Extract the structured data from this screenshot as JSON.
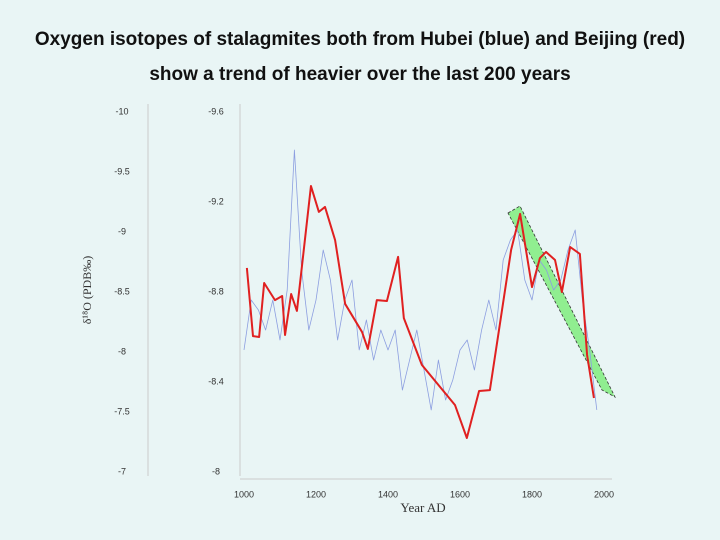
{
  "chart_data": {
    "type": "line",
    "title": "Oxygen isotopes of stalagmites both from Hubei (blue) and Beijing (red) show a trend of heavier over the last 200 years",
    "xlabel": "Year AD",
    "ylabel": "δ¹⁸O (PDB‰)",
    "xlim": [
      1000,
      2000
    ],
    "xticks": [
      1000,
      1200,
      1400,
      1600,
      1800,
      2000
    ],
    "ylim": [
      -10,
      -7
    ],
    "yticks": [
      -10,
      -9.5,
      -9,
      -8.5,
      -8,
      -7.5,
      -7
    ],
    "y2lim": [
      -9.6,
      -8
    ],
    "y2ticks": [
      -9.6,
      -9.2,
      -8.8,
      -8.4,
      -8
    ],
    "y_inverted": true,
    "series": [
      {
        "color": "#8c9ee0",
        "axis": "y",
        "x": [
          1000,
          1020,
          1040,
          1060,
          1080,
          1100,
          1120,
          1140,
          1160,
          1180,
          1200,
          1220,
          1240,
          1260,
          1280,
          1300,
          1320,
          1340,
          1360,
          1380,
          1400,
          1420,
          1440,
          1460,
          1480,
          1500,
          1520,
          1540,
          1560,
          1580,
          1600,
          1620,
          1640,
          1660,
          1680,
          1700,
          1720,
          1740,
          1760,
          1780,
          1800,
          1820,
          1840,
          1860,
          1880,
          1900,
          1920,
          1940,
          1960,
          1980
        ],
        "values": [
          -8.017,
          -8.433,
          -8.35,
          -8.183,
          -8.433,
          -8.1,
          -8.517,
          -9.683,
          -8.683,
          -8.183,
          -8.433,
          -8.85,
          -8.6,
          -8.1,
          -8.433,
          -8.6,
          -8.017,
          -8.267,
          -7.933,
          -8.183,
          -8.017,
          -8.183,
          -7.683,
          -7.933,
          -8.183,
          -7.85,
          -7.517,
          -7.933,
          -7.6,
          -7.767,
          -8.017,
          -8.1,
          -7.85,
          -8.183,
          -8.433,
          -8.183,
          -8.767,
          -8.933,
          -9.017,
          -8.6,
          -8.433,
          -8.767,
          -8.683,
          -8.517,
          -8.6,
          -8.85,
          -9.017,
          -8.433,
          -8.017,
          -7.517
        ]
      },
      {
        "color": "#e02020",
        "axis": "y2",
        "x": [
          1008,
          1025,
          1042,
          1056,
          1086,
          1106,
          1114,
          1131,
          1147,
          1186,
          1208,
          1225,
          1253,
          1281,
          1328,
          1344,
          1369,
          1397,
          1428,
          1444,
          1494,
          1586,
          1619,
          1653,
          1683,
          1742,
          1767,
          1800,
          1822,
          1839,
          1864,
          1883,
          1906,
          1933,
          1953,
          1972
        ],
        "values": [
          -8.907,
          -8.604,
          -8.6,
          -8.84,
          -8.764,
          -8.782,
          -8.609,
          -8.791,
          -8.716,
          -9.271,
          -9.156,
          -9.178,
          -9.031,
          -8.747,
          -8.622,
          -8.547,
          -8.764,
          -8.76,
          -8.956,
          -8.684,
          -8.476,
          -8.298,
          -8.151,
          -8.36,
          -8.364,
          -8.987,
          -9.147,
          -8.822,
          -8.951,
          -8.978,
          -8.942,
          -8.8,
          -9.0,
          -8.969,
          -8.52,
          -8.329
        ]
      }
    ]
  }
}
